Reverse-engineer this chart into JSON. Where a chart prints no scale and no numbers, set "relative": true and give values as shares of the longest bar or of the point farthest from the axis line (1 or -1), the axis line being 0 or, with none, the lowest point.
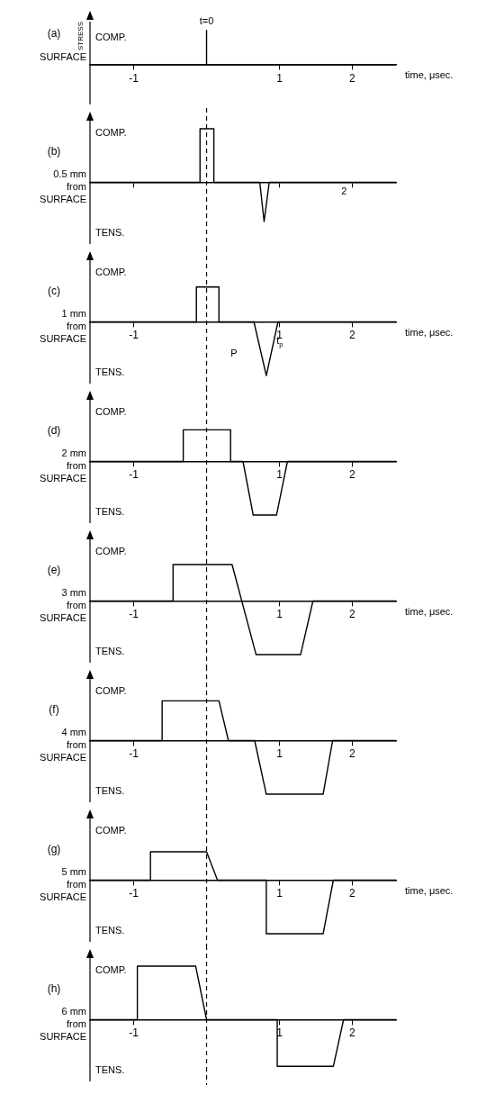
{
  "chart_data": [
    {
      "type": "line",
      "title": "(a)",
      "subtitle": "SURFACE",
      "ylabel": "STRESS",
      "xlabel": "time, μsec.",
      "relative": true,
      "xlim": [
        -1.6,
        2.6
      ],
      "xticks": [
        -1,
        1,
        2
      ],
      "legend": false,
      "grid": false,
      "marker": "none",
      "line_style": "solid",
      "annotations": [
        "COMP.",
        {
          "text": "t=0",
          "x": 0,
          "y": 1
        }
      ],
      "series": [
        {
          "color": "#000000",
          "x": [
            -1.6,
            0,
            0,
            0,
            2.6
          ],
          "values": [
            0,
            0,
            1,
            0,
            0
          ]
        }
      ]
    },
    {
      "type": "line",
      "title": "(b)",
      "subtitle": "0.5 mm from SURFACE",
      "relative": true,
      "xlim": [
        -1.6,
        2.6
      ],
      "xticks": [
        -1,
        1,
        2
      ],
      "tick_labels": false,
      "legend": false,
      "grid": false,
      "marker": "none",
      "line_style": "solid",
      "annotations": [
        "COMP.",
        "TENS.",
        "2"
      ],
      "ref_lines": [
        {
          "axis": "x",
          "value": 0,
          "line_style": "dashed"
        }
      ],
      "series": [
        {
          "color": "#000000",
          "x": [
            -1.6,
            -0.09,
            -0.09,
            0.1,
            0.1,
            0.73,
            0.79,
            0.86,
            2.6
          ],
          "values": [
            0,
            0,
            1,
            1,
            0,
            0,
            -0.73,
            0,
            0
          ]
        }
      ]
    },
    {
      "type": "line",
      "title": "(c)",
      "subtitle": "1 mm from SURFACE",
      "xlabel": "time, μsec.",
      "relative": true,
      "xlim": [
        -1.6,
        2.6
      ],
      "xticks": [
        -1,
        1,
        2
      ],
      "legend": false,
      "grid": false,
      "marker": "none",
      "line_style": "solid",
      "annotations": [
        "COMP.",
        "TENS.",
        "P",
        "t$_{p}$"
      ],
      "ref_lines": [
        {
          "axis": "x",
          "value": 0,
          "line_style": "dashed"
        }
      ],
      "series": [
        {
          "color": "#000000",
          "x": [
            -1.6,
            -0.14,
            -0.14,
            0.17,
            0.17,
            0.65,
            0.82,
            0.98,
            2.6
          ],
          "values": [
            0,
            0,
            0.65,
            0.65,
            0,
            0,
            -1,
            0,
            0
          ]
        }
      ]
    },
    {
      "type": "line",
      "title": "(d)",
      "subtitle": "2 mm from SURFACE",
      "relative": true,
      "xlim": [
        -1.6,
        2.6
      ],
      "xticks": [
        -1,
        1,
        2
      ],
      "legend": false,
      "grid": false,
      "marker": "none",
      "line_style": "solid",
      "annotations": [
        "COMP.",
        "TENS."
      ],
      "ref_lines": [
        {
          "axis": "x",
          "value": 0,
          "line_style": "dashed"
        }
      ],
      "series": [
        {
          "color": "#000000",
          "x": [
            -1.6,
            -0.32,
            -0.32,
            0.33,
            0.33,
            0.5,
            0.64,
            0.96,
            1.11,
            2.6
          ],
          "values": [
            0,
            0,
            0.59,
            0.59,
            0,
            0,
            -1,
            -1,
            0,
            0
          ]
        }
      ]
    },
    {
      "type": "line",
      "title": "(e)",
      "subtitle": "3 mm from SURFACE",
      "xlabel": "time, μsec.",
      "relative": true,
      "xlim": [
        -1.6,
        2.6
      ],
      "xticks": [
        -1,
        1,
        2
      ],
      "legend": false,
      "grid": false,
      "marker": "none",
      "line_style": "solid",
      "annotations": [
        "COMP.",
        "TENS."
      ],
      "ref_lines": [
        {
          "axis": "x",
          "value": 0,
          "line_style": "dashed"
        }
      ],
      "series": [
        {
          "color": "#000000",
          "x": [
            -1.6,
            -0.46,
            -0.46,
            0.35,
            0.68,
            1.29,
            1.46,
            2.6
          ],
          "values": [
            0,
            0,
            0.68,
            0.68,
            -1,
            -1,
            0,
            0
          ]
        }
      ]
    },
    {
      "type": "line",
      "title": "(f)",
      "subtitle": "4 mm from SURFACE",
      "relative": true,
      "xlim": [
        -1.6,
        2.6
      ],
      "xticks": [
        -1,
        1,
        2
      ],
      "legend": false,
      "grid": false,
      "marker": "none",
      "line_style": "solid",
      "annotations": [
        "COMP.",
        "TENS."
      ],
      "ref_lines": [
        {
          "axis": "x",
          "value": 0,
          "line_style": "dashed"
        }
      ],
      "series": [
        {
          "color": "#000000",
          "x": [
            -1.6,
            -0.61,
            -0.61,
            0.17,
            0.3,
            0.66,
            0.82,
            1.6,
            1.73,
            2.6
          ],
          "values": [
            0,
            0,
            0.74,
            0.74,
            0,
            0,
            -1,
            -1,
            0,
            0
          ]
        }
      ]
    },
    {
      "type": "line",
      "title": "(g)",
      "subtitle": "5 mm from SURFACE",
      "xlabel": "time, μsec.",
      "relative": true,
      "xlim": [
        -1.6,
        2.6
      ],
      "xticks": [
        -1,
        1,
        2
      ],
      "legend": false,
      "grid": false,
      "marker": "none",
      "line_style": "solid",
      "annotations": [
        "COMP.",
        "TENS."
      ],
      "ref_lines": [
        {
          "axis": "x",
          "value": 0,
          "line_style": "dashed"
        }
      ],
      "series": [
        {
          "color": "#000000",
          "x": [
            -1.6,
            -0.77,
            -0.77,
            0,
            0.15,
            0.82,
            0.82,
            1.6,
            1.74,
            2.6
          ],
          "values": [
            0,
            0,
            0.53,
            0.53,
            0,
            0,
            -1,
            -1,
            0,
            0
          ]
        }
      ]
    },
    {
      "type": "line",
      "title": "(h)",
      "subtitle": "6 mm from SURFACE",
      "relative": true,
      "xlim": [
        -1.6,
        2.6
      ],
      "xticks": [
        -1,
        1,
        2
      ],
      "legend": false,
      "grid": false,
      "marker": "none",
      "line_style": "solid",
      "annotations": [
        "COMP.",
        "TENS."
      ],
      "ref_lines": [
        {
          "axis": "x",
          "value": 0,
          "line_style": "dashed"
        }
      ],
      "series": [
        {
          "color": "#000000",
          "x": [
            -1.6,
            -0.95,
            -0.95,
            -0.15,
            0,
            0.97,
            0.97,
            1.74,
            1.88,
            2.6
          ],
          "values": [
            0,
            0,
            1,
            1,
            0,
            0,
            -0.87,
            -0.87,
            0,
            0
          ]
        }
      ]
    }
  ]
}
